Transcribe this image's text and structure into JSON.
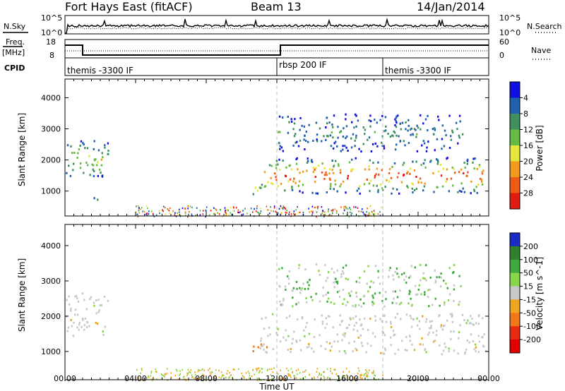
{
  "header": {
    "site": "Fort Hays East (fitACF)",
    "beam": "Beam 13",
    "date": "14/Jan/2014"
  },
  "noise_panel": {
    "left_label": "N.Sky",
    "right_label": "N.Search",
    "left_ticks": [
      "10^5",
      "10^0"
    ],
    "right_ticks": [
      "10^5",
      "10^0"
    ]
  },
  "freq_panel": {
    "left_label_1": "Freq.",
    "left_label_2": "[MHz]",
    "left_ticks": [
      "18",
      "8"
    ],
    "right_label": "Nave",
    "right_ticks": [
      "60",
      "0"
    ],
    "freq_steps": [
      [
        0,
        17
      ],
      [
        1.0,
        17
      ],
      [
        1.0,
        10
      ],
      [
        12.2,
        10
      ],
      [
        12.2,
        17
      ],
      [
        24,
        17
      ]
    ]
  },
  "cpid_panel": {
    "label": "CPID",
    "segments": [
      {
        "start": 0,
        "text": "themis -3300 IF"
      },
      {
        "start": 12.0,
        "text": "rbsp 200 IF"
      },
      {
        "start": 18.0,
        "text": "themis -3300 IF"
      }
    ]
  },
  "time_axis": {
    "label": "Time UT",
    "ticks": [
      "00:00",
      "04:00",
      "08:00",
      "12:00",
      "16:00",
      "20:00",
      "00:00"
    ],
    "range_hours": [
      0,
      24
    ]
  },
  "chart_data": [
    {
      "type": "heatmap",
      "title": "Power",
      "ylabel": "Slant Range [km]",
      "xlabel": "Time UT",
      "ylim": [
        200,
        4600
      ],
      "yticks": [
        "1000",
        "2000",
        "3000",
        "4000"
      ],
      "colorbar": {
        "label": "Power [dB]",
        "ticks": [
          "4",
          "8",
          "12",
          "16",
          "20",
          "24",
          "28"
        ],
        "colors": [
          "#1010e0",
          "#2060b0",
          "#3f8f5f",
          "#66bb44",
          "#e7e63a",
          "#f29a1c",
          "#ef5a14",
          "#e01b10"
        ]
      },
      "echo_regions": [
        {
          "t": [
            0.0,
            2.5
          ],
          "range_km": [
            1400,
            2700
          ],
          "peak_db": 16
        },
        {
          "t": [
            1.3,
            2.0
          ],
          "range_km": [
            650,
            850
          ],
          "peak_db": 10
        },
        {
          "t": [
            10.6,
            11.5
          ],
          "range_km": [
            900,
            1300
          ],
          "peak_db": 22
        },
        {
          "t": [
            11.0,
            23.8
          ],
          "range_km": [
            950,
            2100
          ],
          "peak_db": 30
        },
        {
          "t": [
            12.0,
            22.5
          ],
          "range_km": [
            2300,
            3500
          ],
          "peak_db": 8
        }
      ]
    },
    {
      "type": "heatmap",
      "title": "Velocity",
      "ylabel": "Slant Range [km]",
      "xlabel": "Time UT",
      "ylim": [
        200,
        4600
      ],
      "yticks": [
        "1000",
        "2000",
        "3000",
        "4000"
      ],
      "colorbar": {
        "label": "Velocity [m s^-1]",
        "ticks": [
          "200",
          "100",
          "50",
          "15",
          "-15",
          "-50",
          "-100",
          "-200"
        ],
        "colors": [
          "#1a2bc8",
          "#2e7f2e",
          "#3fa83f",
          "#8ad64a",
          "#c8c8c8",
          "#f0a51e",
          "#f07818",
          "#e82a10",
          "#e00000"
        ]
      },
      "echo_regions": [
        {
          "t": [
            0.0,
            2.5
          ],
          "range_km": [
            1400,
            2700
          ],
          "velocity": 0
        },
        {
          "t": [
            10.6,
            11.5
          ],
          "range_km": [
            900,
            1300
          ],
          "velocity": -60
        },
        {
          "t": [
            11.0,
            23.8
          ],
          "range_km": [
            950,
            2100
          ],
          "velocity": 0
        },
        {
          "t": [
            12.0,
            22.5
          ],
          "range_km": [
            2300,
            3500
          ],
          "velocity": 20
        }
      ]
    }
  ]
}
